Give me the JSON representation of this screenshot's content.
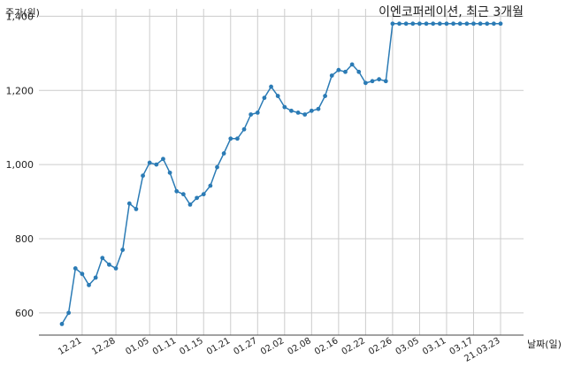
{
  "chart_data": {
    "type": "line",
    "title": "이엔코퍼레이션, 최근 3개월",
    "ylabel": "주가(원)",
    "xlabel": "날짜(일)",
    "ylim": [
      540,
      1420
    ],
    "yticks": [
      600,
      800,
      1000,
      1200,
      1400
    ],
    "ytick_labels": [
      "600",
      "800",
      "1,000",
      "1,200",
      "1,400"
    ],
    "xtick_labels": [
      "12.21",
      "12.28",
      "01.05",
      "01.11",
      "01.15",
      "01.21",
      "01.27",
      "02.02",
      "02.08",
      "02.16",
      "02.22",
      "02.26",
      "03.05",
      "03.11",
      "03.17",
      "21.03.23"
    ],
    "xtick_index": [
      3,
      8,
      13,
      17,
      21,
      25,
      29,
      33,
      37,
      41,
      45,
      49,
      53,
      57,
      61,
      65
    ],
    "grid": true,
    "color": "#2b7bb5",
    "series": [
      {
        "values": [
          570,
          600,
          720,
          705,
          675,
          695,
          748,
          730,
          720,
          770,
          895,
          880,
          970,
          1005,
          1000,
          1015,
          978,
          928,
          920,
          892,
          910,
          920,
          943,
          993,
          1030,
          1070,
          1070,
          1095,
          1135,
          1140,
          1180,
          1210,
          1185,
          1155,
          1145,
          1140,
          1135,
          1145,
          1150,
          1185,
          1240,
          1255,
          1250,
          1270,
          1250,
          1220,
          1225,
          1230,
          1225,
          1380,
          1380,
          1380,
          1380,
          1380,
          1380,
          1380,
          1380,
          1380,
          1380,
          1380,
          1380,
          1380,
          1380,
          1380,
          1380,
          1380
        ]
      }
    ]
  }
}
